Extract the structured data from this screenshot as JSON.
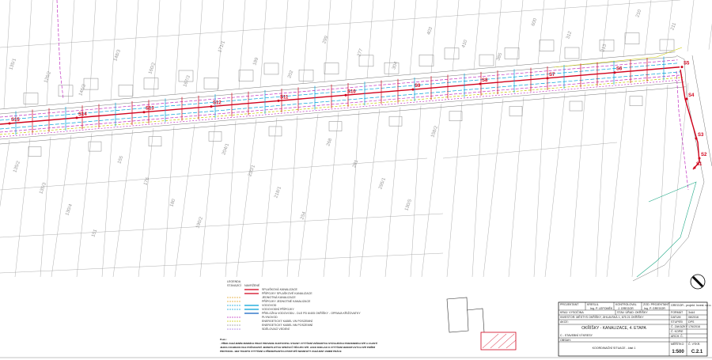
{
  "colors": {
    "sewer": "#d0021b",
    "water": "#00a0d8",
    "gas": "#c030c0",
    "electric": "#c8c800",
    "cadastre": "#9a9a9a",
    "combined_sewer": "#e0a020"
  },
  "manholes": [
    "S15",
    "S14",
    "S13",
    "S12",
    "S11",
    "S10",
    "S9",
    "S8",
    "S7",
    "S6",
    "S5",
    "S4",
    "S3",
    "S2",
    "S1"
  ],
  "parcels": [
    "135/1",
    "126/2",
    "146/3",
    "148/3",
    "160/2",
    "167/3",
    "171/1",
    "189",
    "202",
    "299",
    "277",
    "304",
    "403",
    "410",
    "385",
    "600",
    "312",
    "213",
    "210",
    "211",
    "135/2",
    "135/3",
    "130/4",
    "151",
    "155",
    "176",
    "180",
    "190/2",
    "204/1",
    "230/1",
    "218/1",
    "254",
    "268",
    "281",
    "295/1",
    "130/5",
    "158/2"
  ],
  "legend": {
    "title": "LEGENDA",
    "existing": "STÁVAJÍCÍ",
    "proposed": "NAVRŽENÉ",
    "items": [
      {
        "label": "SPLAŠKOVÁ KANALIZACE",
        "color": "#d0021b",
        "existing": false,
        "proposed": true
      },
      {
        "label": "PŘÍPOJKY SPLAŠKOVÉ KANALIZACE",
        "color": "#d0021b",
        "existing": false,
        "proposed": true
      },
      {
        "label": "JEDNOTNÁ KANALIZACE",
        "color": "#e0a020",
        "existing": true,
        "proposed": false
      },
      {
        "label": "PŘÍPOJKY JEDNOTNÉ KANALIZACE",
        "color": "#e0a020",
        "existing": true,
        "proposed": false
      },
      {
        "label": "VODOVOD",
        "color": "#00a0d8",
        "existing": true,
        "proposed": true
      },
      {
        "label": "VODOVODNÍ PŘÍPOJKY",
        "color": "#00a0d8",
        "existing": true,
        "proposed": true
      },
      {
        "label": "PŘELOŽKA VODOVODU - DLE PD 6/405 OKŘÍŠKY - OPRAVA KŘIŽOVATKY",
        "color": "#1060c0",
        "existing": false,
        "proposed": true
      },
      {
        "label": "PLYNOVOD",
        "color": "#c030c0",
        "existing": true,
        "proposed": false
      },
      {
        "label": "ENERGETICKÝ KABEL VN POSZEMNÍ",
        "color": "#c8c800",
        "existing": true,
        "proposed": false
      },
      {
        "label": "ENERGETICKÝ KABEL NN POSZEMNÍ",
        "color": "#909090",
        "existing": true,
        "proposed": false
      },
      {
        "label": "SDĚLOVACÍ VEDENÍ",
        "color": "#a070e0",
        "existing": true,
        "proposed": false
      }
    ]
  },
  "note": {
    "title": "Pozn.:",
    "lines": [
      "- PŘED ZAHÁJENÍM ZEMNÍCH PRACÍ PROVEDE ZHOTOVITEL STAVBY VYTÝČENÍ VEŠKERÝCH STÁVAJÍCÍCH PODZEMNÍCH SÍTÍ A ZAJISTÍ",
      "JEJICH OCHRANU DLE POŽADAVKŮ JEDNOTLIVÝCH SPRÁVCŮ TĚCHTO SÍTÍ. JAKO DOKLAD O VYTÝČENÍ JEDNOTLIVÝCH SÍTÍ POŘÍDÍ",
      "PROTOKOL. BEZ TOHOTO VYTÝČENÍ A PŘEDEPSANÝCH POSTUPŮ NESMÍ BÝT ZAHÁJENY ZEMNÍ PRÁCE"
    ]
  },
  "title_block": {
    "projektant_label": "PROJEKTANT",
    "kreslil_label": "KRESLIL",
    "kontroloval_label": "KONTROLOVAL",
    "zod_projektant_label": "ZOD. PROJEKTANT",
    "kreslil": "Ing. P. LEPOMĚK",
    "kontroloval": "J. GREGOR",
    "zod_projektant": "Ing. P. GREGOR",
    "company": "GREGOR - projekt. Invest. s.r.o.",
    "kraj": "KRAJ: VYSOČINA",
    "stav_urad": "STAV. ÚŘAD: OKŘÍŠKY",
    "investor": "INVESTOR: MĚSTYS OKŘÍŠKY, JIHLAVSKÁ 1, 675 21 OKŘÍŠKY",
    "akce_label": "AKCE:",
    "akce": "OKŘÍŠKY - KANALIZACE, 4. ETAPA",
    "part": "C - STAVEBNÍ VÝKRESY",
    "obsah_label": "OBSAH:",
    "obsah": "KOORDINAČNÍ SITUACE - část 1",
    "format_label": "FORMÁT",
    "format": "3xA4",
    "datum_label": "DATUM",
    "datum": "08/2016",
    "stupen_label": "STUPEŇ",
    "stupen": "DPS",
    "zakazka_label": "Č. ZAKÁZKY",
    "zakazka": "176/2016",
    "kopie_label": "Č. KOPIE",
    "arch_label": "ARCH. Č.",
    "meritko_label": "MĚŘÍTKO",
    "meritko": "1:500",
    "vykres_label": "Č. VÝKR.",
    "vykres": "C.2.1"
  }
}
